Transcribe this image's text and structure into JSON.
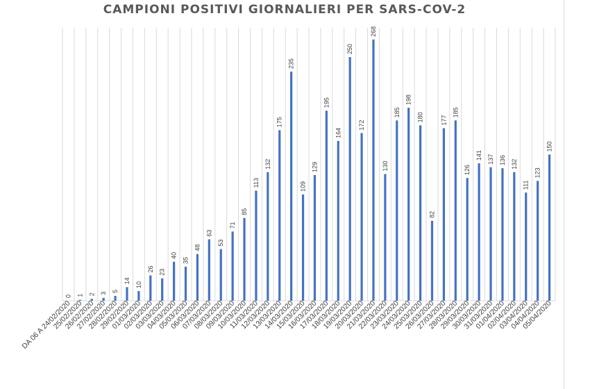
{
  "chart_data": {
    "type": "bar",
    "title": "CAMPIONI POSITIVI GIORNALIERI PER SARS-COV-2",
    "xlabel": "",
    "ylabel": "",
    "ylim": [
      0,
      280
    ],
    "grid": "vertical",
    "legend": "none",
    "bar_color": "#4472c4",
    "categories": [
      "DA 06 A 24/02/2020",
      "25/02/2020",
      "26/02/2020",
      "27/02/2020",
      "28/02/2020",
      "29/02/2020",
      "01/03/2020",
      "02/03/2020",
      "03/03/2020",
      "04/03/2020",
      "05/03/2020",
      "06/03/2020",
      "07/03/2020",
      "08/03/2020",
      "09/03/2020",
      "10/03/2020",
      "11/03/2020",
      "12/03/2020",
      "13/03/2020",
      "14/03/2020",
      "15/03/2020",
      "16/03/2020",
      "17/03/2020",
      "18/03/2020",
      "19/03/2020",
      "20/03/2020",
      "21/03/2020",
      "22/03/2020",
      "23/03/2020",
      "24/03/2020",
      "25/03/2020",
      "26/03/2020",
      "27/03/2020",
      "28/03/2020",
      "29/03/2020",
      "30/03/2020",
      "31/03/2020",
      "01/04/2020",
      "02/04/2020",
      "03/04/2020",
      "04/04/2020",
      "05/04/2020"
    ],
    "values": [
      0,
      1,
      2,
      3,
      5,
      14,
      10,
      26,
      23,
      40,
      35,
      48,
      63,
      53,
      71,
      85,
      113,
      132,
      175,
      235,
      109,
      129,
      195,
      164,
      250,
      172,
      268,
      130,
      185,
      198,
      180,
      82,
      177,
      185,
      126,
      141,
      137,
      136,
      132,
      111,
      123,
      150
    ]
  }
}
